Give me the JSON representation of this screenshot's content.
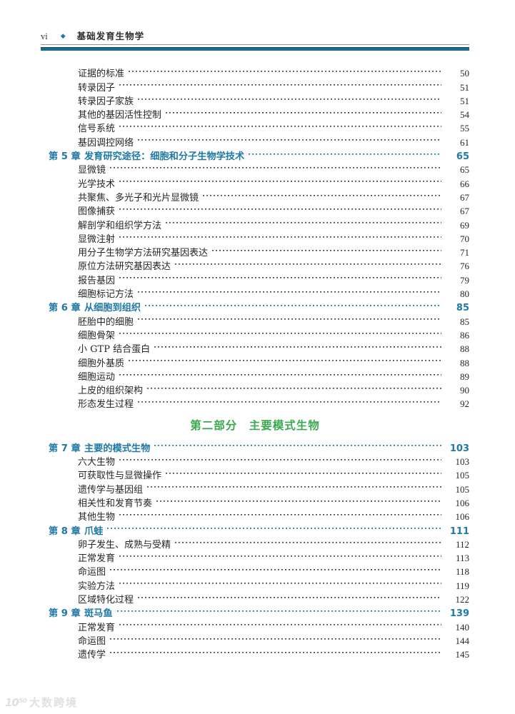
{
  "colors": {
    "accent_teal": "#2079a4",
    "rule_teal": "#1c6b91",
    "section_green": "#3aa84f",
    "body_text": "#262626"
  },
  "header": {
    "folio": "vi",
    "diamond_icon": "◆",
    "book_title": "基础发育生物学"
  },
  "watermark": {
    "logo": "10⁵⁰",
    "text": "大数跨境"
  },
  "toc": [
    {
      "type": "sub",
      "label": "证据的标准",
      "page": "50"
    },
    {
      "type": "sub",
      "label": "转录因子",
      "page": "51"
    },
    {
      "type": "sub",
      "label": "转录因子家族",
      "page": "51"
    },
    {
      "type": "sub",
      "label": "其他的基因活性控制",
      "page": "54"
    },
    {
      "type": "sub",
      "label": "信号系统",
      "page": "55"
    },
    {
      "type": "sub",
      "label": "基因调控网络",
      "page": "61"
    },
    {
      "type": "chapter",
      "num": "第 5 章",
      "label": "发育研究途径：细胞和分子生物学技术",
      "page": "65"
    },
    {
      "type": "sub",
      "label": "显微镜",
      "page": "65"
    },
    {
      "type": "sub",
      "label": "光学技术",
      "page": "66"
    },
    {
      "type": "sub",
      "label": "共聚焦、多光子和光片显微镜",
      "page": "67"
    },
    {
      "type": "sub",
      "label": "图像捕获",
      "page": "67"
    },
    {
      "type": "sub",
      "label": "解剖学和组织学方法",
      "page": "69"
    },
    {
      "type": "sub",
      "label": "显微注射",
      "page": "70"
    },
    {
      "type": "sub",
      "label": "用分子生物学方法研究基因表达",
      "page": "71"
    },
    {
      "type": "sub",
      "label": "原位方法研究基因表达",
      "page": "76"
    },
    {
      "type": "sub",
      "label": "报告基因",
      "page": "79"
    },
    {
      "type": "sub",
      "label": "细胞标记方法",
      "page": "80"
    },
    {
      "type": "chapter",
      "num": "第 6 章",
      "label": "从细胞到组织",
      "page": "85"
    },
    {
      "type": "sub",
      "label": "胚胎中的细胞",
      "page": "85"
    },
    {
      "type": "sub",
      "label": "细胞骨架",
      "page": "86"
    },
    {
      "type": "sub",
      "label": "小 GTP 结合蛋白",
      "page": "88"
    },
    {
      "type": "sub",
      "label": "细胞外基质",
      "page": "88"
    },
    {
      "type": "sub",
      "label": "细胞运动",
      "page": "89"
    },
    {
      "type": "sub",
      "label": "上皮的组织架构",
      "page": "90"
    },
    {
      "type": "sub",
      "label": "形态发生过程",
      "page": "92"
    },
    {
      "type": "section",
      "label": "第二部分　主要模式生物"
    },
    {
      "type": "chapter",
      "num": "第 7 章",
      "label": "主要的模式生物",
      "page": "103"
    },
    {
      "type": "sub",
      "label": "六大生物",
      "page": "103"
    },
    {
      "type": "sub",
      "label": "可获取性与显微操作",
      "page": "105"
    },
    {
      "type": "sub",
      "label": "遗传学与基因组",
      "page": "105"
    },
    {
      "type": "sub",
      "label": "相关性和发育节奏",
      "page": "106"
    },
    {
      "type": "sub",
      "label": "其他生物",
      "page": "106"
    },
    {
      "type": "chapter",
      "num": "第 8 章",
      "label": "爪蛙",
      "page": "111"
    },
    {
      "type": "sub",
      "label": "卵子发生、成熟与受精",
      "page": "112"
    },
    {
      "type": "sub",
      "label": "正常发育",
      "page": "113"
    },
    {
      "type": "sub",
      "label": "命运图",
      "page": "118"
    },
    {
      "type": "sub",
      "label": "实验方法",
      "page": "119"
    },
    {
      "type": "sub",
      "label": "区域特化过程",
      "page": "122"
    },
    {
      "type": "chapter",
      "num": "第 9 章",
      "label": "斑马鱼",
      "page": "139"
    },
    {
      "type": "sub",
      "label": "正常发育",
      "page": "140"
    },
    {
      "type": "sub",
      "label": "命运图",
      "page": "144"
    },
    {
      "type": "sub",
      "label": "遗传学",
      "page": "145"
    }
  ]
}
